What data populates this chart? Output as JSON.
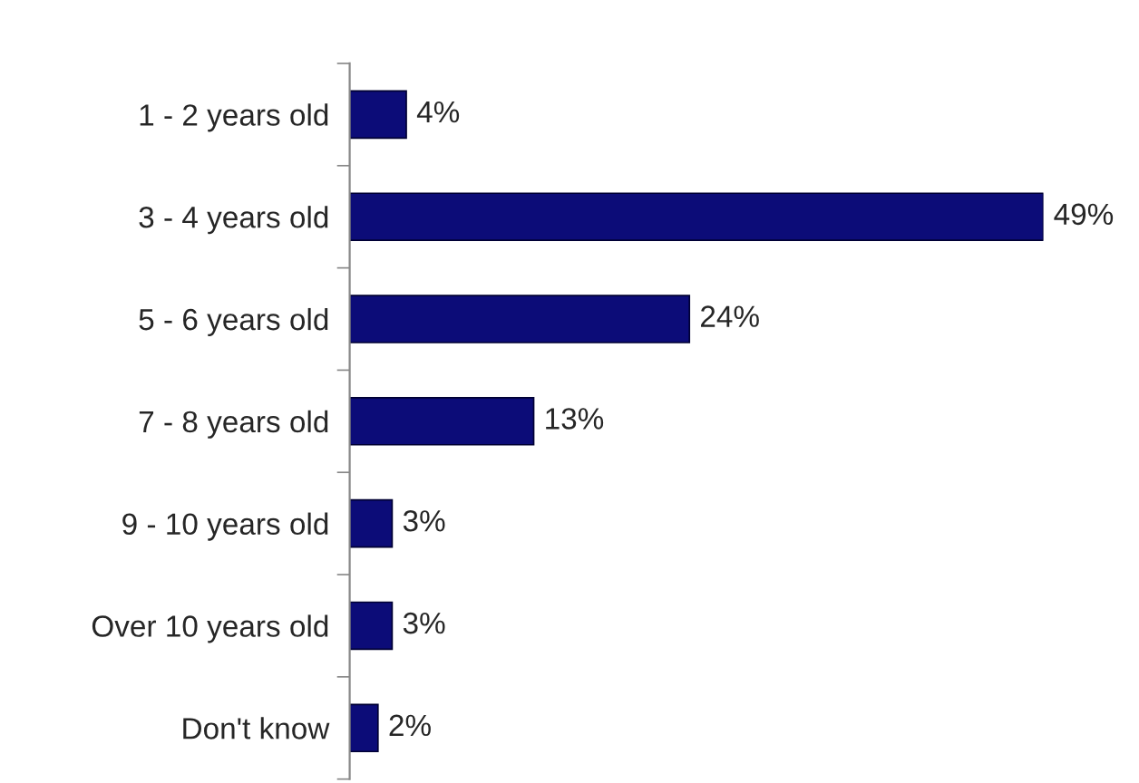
{
  "chart_data": {
    "type": "bar",
    "orientation": "horizontal",
    "categories": [
      "1 - 2 years old",
      "3 - 4 years old",
      "5 - 6 years old",
      "7 - 8 years old",
      "9 - 10 years old",
      "Over 10 years old",
      "Don't know"
    ],
    "values": [
      4,
      49,
      24,
      13,
      3,
      3,
      2
    ],
    "value_labels": [
      "4%",
      "49%",
      "24%",
      "13%",
      "3%",
      "3%",
      "2%"
    ],
    "color": "#0c0c78",
    "grid": false,
    "legend": false
  }
}
